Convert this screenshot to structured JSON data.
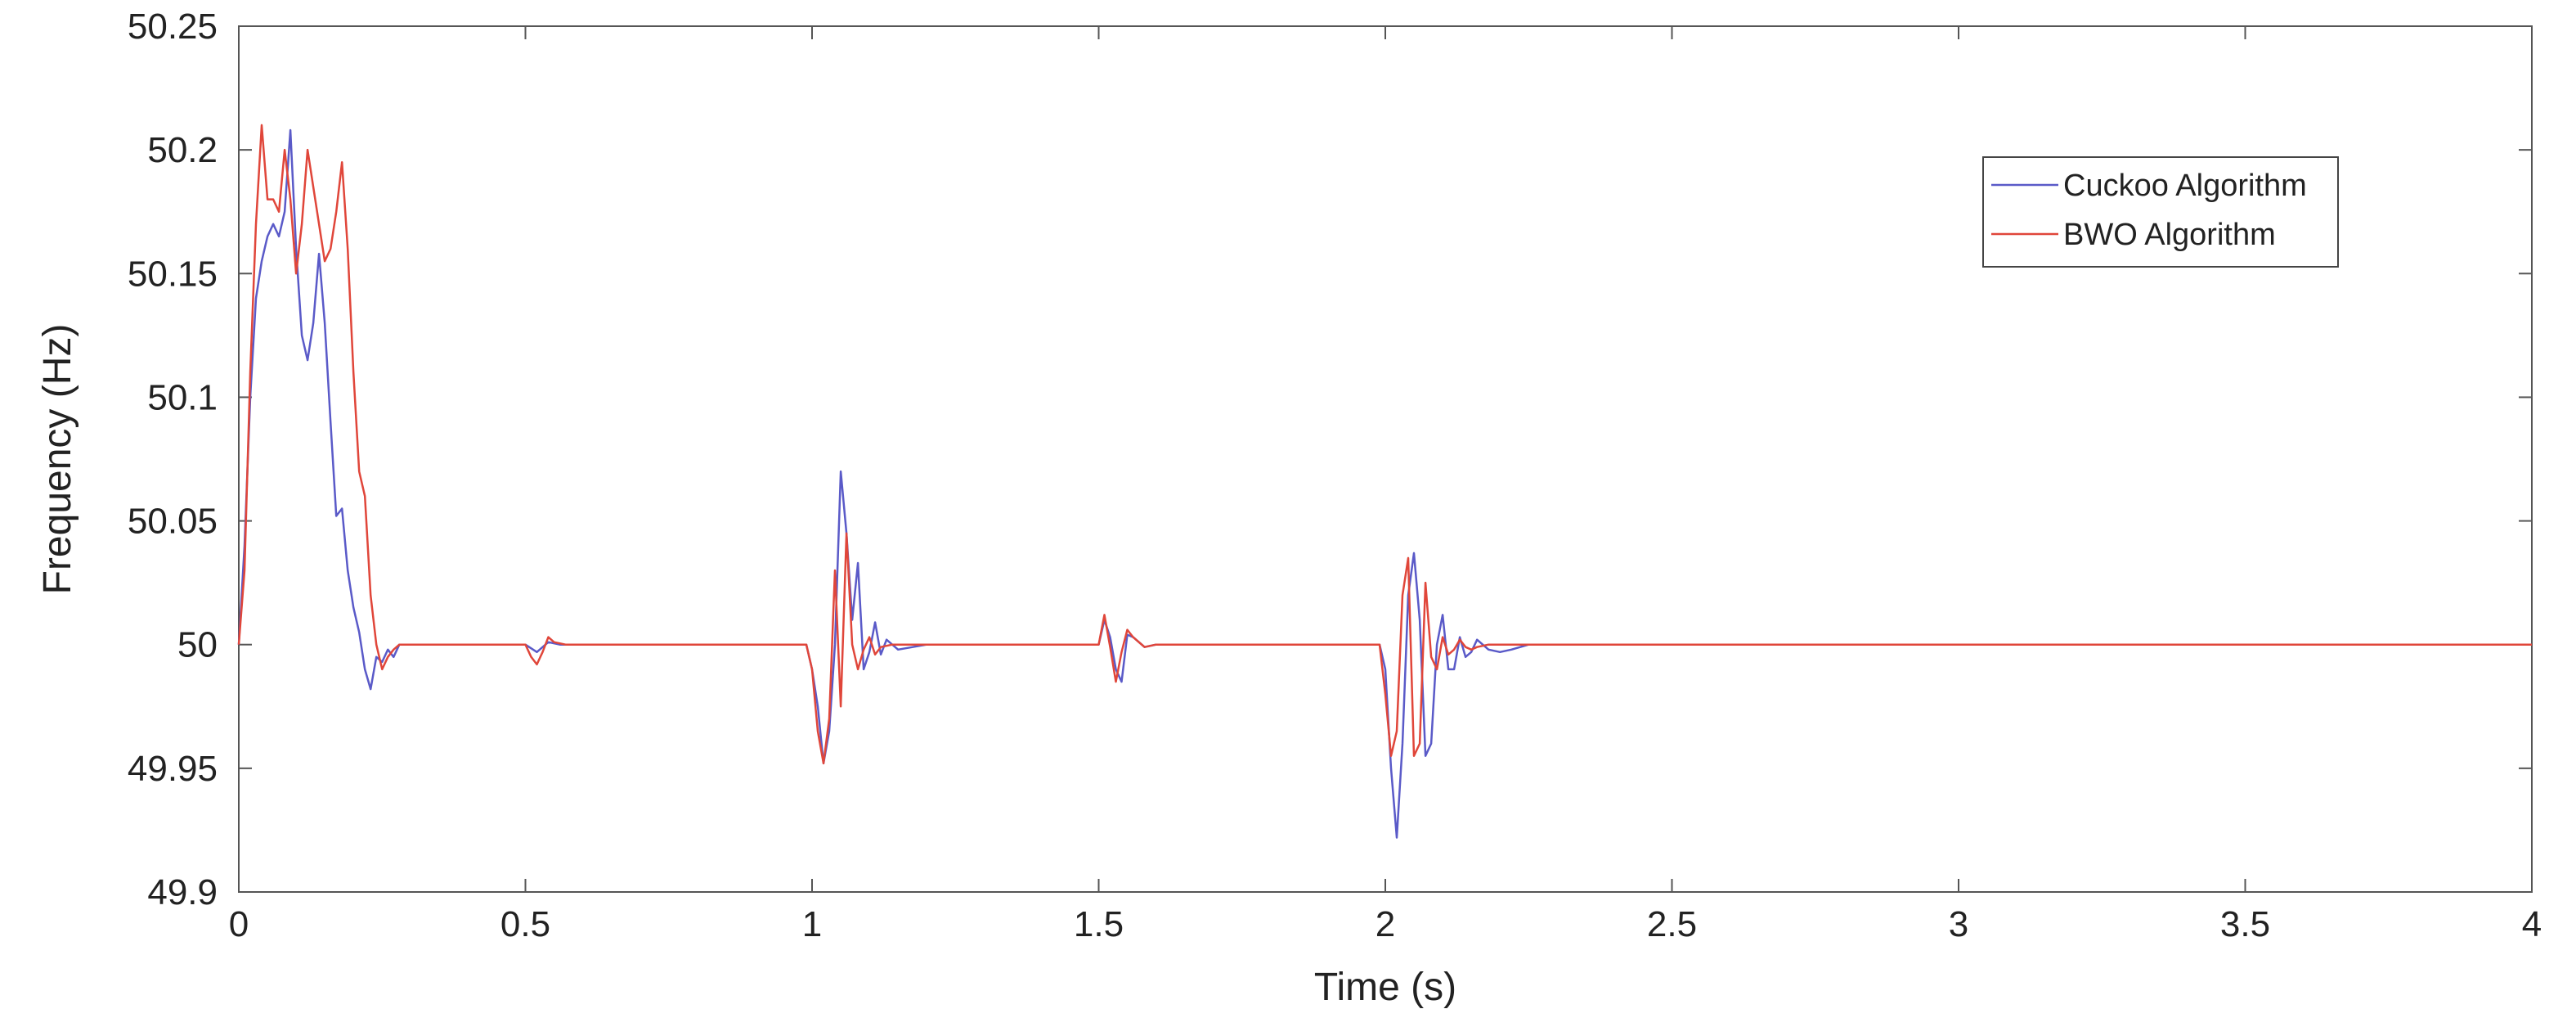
{
  "chart_data": {
    "type": "line",
    "title": "",
    "xlabel": "Time (s)",
    "ylabel": "Frequency (Hz)",
    "xlim": [
      0,
      4
    ],
    "ylim": [
      49.9,
      50.25
    ],
    "xticks": [
      0,
      0.5,
      1,
      1.5,
      2,
      2.5,
      3,
      3.5,
      4
    ],
    "xtick_labels": [
      "0",
      "0.5",
      "1",
      "1.5",
      "2",
      "2.5",
      "3",
      "3.5",
      "4"
    ],
    "yticks": [
      49.9,
      49.95,
      50,
      50.05,
      50.1,
      50.15,
      50.2,
      50.25
    ],
    "ytick_labels": [
      "49.9",
      "49.95",
      "50",
      "50.05",
      "50.1",
      "50.15",
      "50.2",
      "50.25"
    ],
    "grid": false,
    "legend_position": "top-right",
    "series": [
      {
        "name": "Cuckoo Algorithm",
        "color": "#5a5ac8",
        "x": [
          0,
          0.01,
          0.02,
          0.03,
          0.04,
          0.05,
          0.06,
          0.07,
          0.08,
          0.09,
          0.1,
          0.11,
          0.12,
          0.13,
          0.14,
          0.15,
          0.16,
          0.17,
          0.18,
          0.19,
          0.2,
          0.21,
          0.22,
          0.23,
          0.24,
          0.25,
          0.26,
          0.27,
          0.28,
          0.3,
          0.5,
          0.52,
          0.54,
          0.56,
          0.6,
          0.99,
          1.0,
          1.01,
          1.02,
          1.03,
          1.04,
          1.05,
          1.06,
          1.07,
          1.08,
          1.09,
          1.1,
          1.11,
          1.12,
          1.13,
          1.15,
          1.2,
          1.5,
          1.51,
          1.52,
          1.53,
          1.54,
          1.55,
          1.56,
          1.58,
          1.6,
          1.99,
          2.0,
          2.01,
          2.02,
          2.03,
          2.04,
          2.05,
          2.06,
          2.07,
          2.08,
          2.09,
          2.1,
          2.11,
          2.12,
          2.13,
          2.14,
          2.15,
          2.16,
          2.18,
          2.2,
          2.22,
          2.25,
          2.3,
          4.0
        ],
        "y": [
          50.0,
          50.04,
          50.1,
          50.14,
          50.155,
          50.165,
          50.17,
          50.165,
          50.175,
          50.208,
          50.16,
          50.125,
          50.115,
          50.13,
          50.158,
          50.13,
          50.09,
          50.052,
          50.055,
          50.03,
          50.015,
          50.005,
          49.99,
          49.982,
          49.995,
          49.993,
          49.998,
          49.995,
          50.0,
          50.0,
          50.0,
          49.997,
          50.001,
          50.0,
          50.0,
          50.0,
          49.99,
          49.975,
          49.952,
          49.965,
          50.0,
          50.07,
          50.045,
          50.01,
          50.033,
          49.99,
          49.997,
          50.009,
          49.996,
          50.002,
          49.998,
          50.0,
          50.0,
          50.01,
          50.003,
          49.99,
          49.985,
          50.004,
          50.003,
          49.999,
          50.0,
          50.0,
          49.99,
          49.95,
          49.922,
          49.96,
          50.02,
          50.037,
          50.01,
          49.955,
          49.96,
          50.0,
          50.012,
          49.99,
          49.99,
          50.003,
          49.995,
          49.997,
          50.002,
          49.998,
          49.997,
          49.998,
          50.0,
          50.0,
          50.0
        ]
      },
      {
        "name": "BWO Algorithm",
        "color": "#e0463a",
        "x": [
          0,
          0.01,
          0.02,
          0.03,
          0.04,
          0.05,
          0.06,
          0.07,
          0.08,
          0.09,
          0.1,
          0.11,
          0.12,
          0.13,
          0.14,
          0.15,
          0.16,
          0.17,
          0.18,
          0.19,
          0.2,
          0.21,
          0.22,
          0.23,
          0.24,
          0.25,
          0.26,
          0.27,
          0.28,
          0.3,
          0.5,
          0.51,
          0.52,
          0.53,
          0.54,
          0.55,
          0.57,
          0.6,
          0.99,
          1.0,
          1.01,
          1.02,
          1.03,
          1.04,
          1.05,
          1.06,
          1.07,
          1.08,
          1.09,
          1.1,
          1.11,
          1.12,
          1.14,
          1.2,
          1.5,
          1.51,
          1.52,
          1.53,
          1.54,
          1.55,
          1.56,
          1.58,
          1.6,
          1.99,
          2.0,
          2.01,
          2.02,
          2.03,
          2.04,
          2.05,
          2.06,
          2.07,
          2.08,
          2.09,
          2.1,
          2.11,
          2.12,
          2.13,
          2.14,
          2.15,
          2.16,
          2.18,
          2.2,
          2.22,
          2.25,
          2.3,
          4.0
        ],
        "y": [
          50.0,
          50.03,
          50.11,
          50.17,
          50.21,
          50.18,
          50.18,
          50.175,
          50.2,
          50.18,
          50.15,
          50.17,
          50.2,
          50.185,
          50.17,
          50.155,
          50.16,
          50.175,
          50.195,
          50.16,
          50.11,
          50.07,
          50.06,
          50.02,
          50.0,
          49.99,
          49.995,
          49.998,
          50.0,
          50.0,
          50.0,
          49.995,
          49.992,
          49.997,
          50.003,
          50.001,
          50.0,
          50.0,
          50.0,
          49.99,
          49.965,
          49.952,
          49.97,
          50.03,
          49.975,
          50.045,
          50.0,
          49.99,
          49.998,
          50.003,
          49.996,
          49.999,
          50.0,
          50.0,
          50.0,
          50.012,
          49.999,
          49.985,
          49.997,
          50.006,
          50.003,
          49.999,
          50.0,
          50.0,
          49.98,
          49.955,
          49.965,
          50.02,
          50.035,
          49.955,
          49.96,
          50.025,
          49.995,
          49.99,
          50.003,
          49.996,
          49.998,
          50.002,
          49.999,
          49.998,
          49.999,
          50.0,
          50.0,
          50.0,
          50.0,
          50.0,
          50.0
        ]
      }
    ]
  }
}
